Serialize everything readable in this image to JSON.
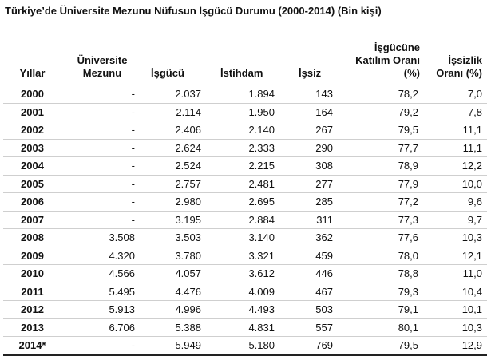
{
  "title": "Türkiye’de Üniversite Mezunu Nüfusun İşgücü Durumu (2000-2014) (Bin kişi)",
  "headers": [
    "Yıllar",
    "Üniversite Mezunu",
    "İşgücü",
    "İstihdam",
    "İşsiz",
    "İşgücüne Katılım Oranı (%)",
    "İşsizlik Oranı (%)"
  ],
  "rows": [
    [
      "2000",
      "-",
      "2.037",
      "1.894",
      "143",
      "78,2",
      "7,0"
    ],
    [
      "2001",
      "-",
      "2.114",
      "1.950",
      "164",
      "79,2",
      "7,8"
    ],
    [
      "2002",
      "-",
      "2.406",
      "2.140",
      "267",
      "79,5",
      "11,1"
    ],
    [
      "2003",
      "-",
      "2.624",
      "2.333",
      "290",
      "77,7",
      "11,1"
    ],
    [
      "2004",
      "-",
      "2.524",
      "2.215",
      "308",
      "78,9",
      "12,2"
    ],
    [
      "2005",
      "-",
      "2.757",
      "2.481",
      "277",
      "77,9",
      "10,0"
    ],
    [
      "2006",
      "-",
      "2.980",
      "2.695",
      "285",
      "77,2",
      "9,6"
    ],
    [
      "2007",
      "-",
      "3.195",
      "2.884",
      "311",
      "77,3",
      "9,7"
    ],
    [
      "2008",
      "3.508",
      "3.503",
      "3.140",
      "362",
      "77,6",
      "10,3"
    ],
    [
      "2009",
      "4.320",
      "3.780",
      "3.321",
      "459",
      "78,0",
      "12,1"
    ],
    [
      "2010",
      "4.566",
      "4.057",
      "3.612",
      "446",
      "78,8",
      "11,0"
    ],
    [
      "2011",
      "5.495",
      "4.476",
      "4.009",
      "467",
      "79,3",
      "10,4"
    ],
    [
      "2012",
      "5.913",
      "4.996",
      "4.493",
      "503",
      "79,1",
      "10,1"
    ],
    [
      "2013",
      "6.706",
      "5.388",
      "4.831",
      "557",
      "80,1",
      "10,3"
    ],
    [
      "2014*",
      "-",
      "5.949",
      "5.180",
      "769",
      "79,5",
      "12,9"
    ]
  ]
}
